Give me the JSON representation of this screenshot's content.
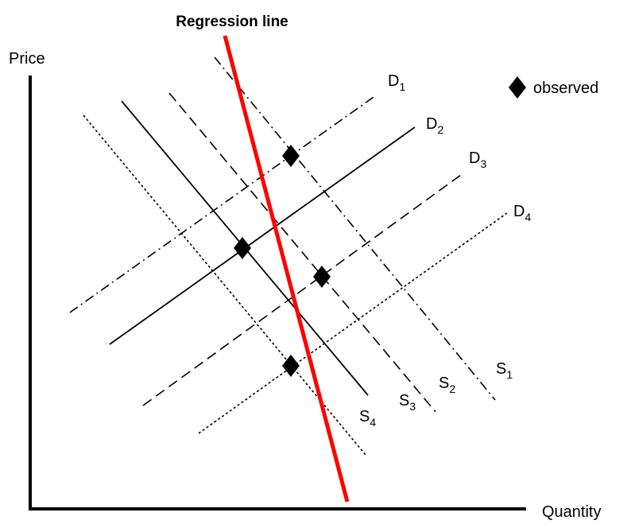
{
  "title": "Regression line",
  "axes": {
    "x_label": "Quantity",
    "y_label": "Price"
  },
  "legend": {
    "marker": "diamond-icon",
    "label": "observed"
  },
  "demand_curves": [
    {
      "letter": "D",
      "index": "1",
      "style": "dash-dot"
    },
    {
      "letter": "D",
      "index": "2",
      "style": "solid"
    },
    {
      "letter": "D",
      "index": "3",
      "style": "dashed"
    },
    {
      "letter": "D",
      "index": "4",
      "style": "dotted"
    }
  ],
  "supply_curves": [
    {
      "letter": "S",
      "index": "1",
      "style": "dash-dot"
    },
    {
      "letter": "S",
      "index": "2",
      "style": "dashed"
    },
    {
      "letter": "S",
      "index": "3",
      "style": "solid"
    },
    {
      "letter": "S",
      "index": "4",
      "style": "dotted"
    }
  ],
  "observed_points": [
    {
      "at": "D1 x S1"
    },
    {
      "at": "D2 x S3"
    },
    {
      "at": "D3 x S2"
    },
    {
      "at": "D4 x S4"
    }
  ],
  "colors": {
    "regression": "#ff0000",
    "lines": "#000000",
    "background": "#ffffff"
  }
}
